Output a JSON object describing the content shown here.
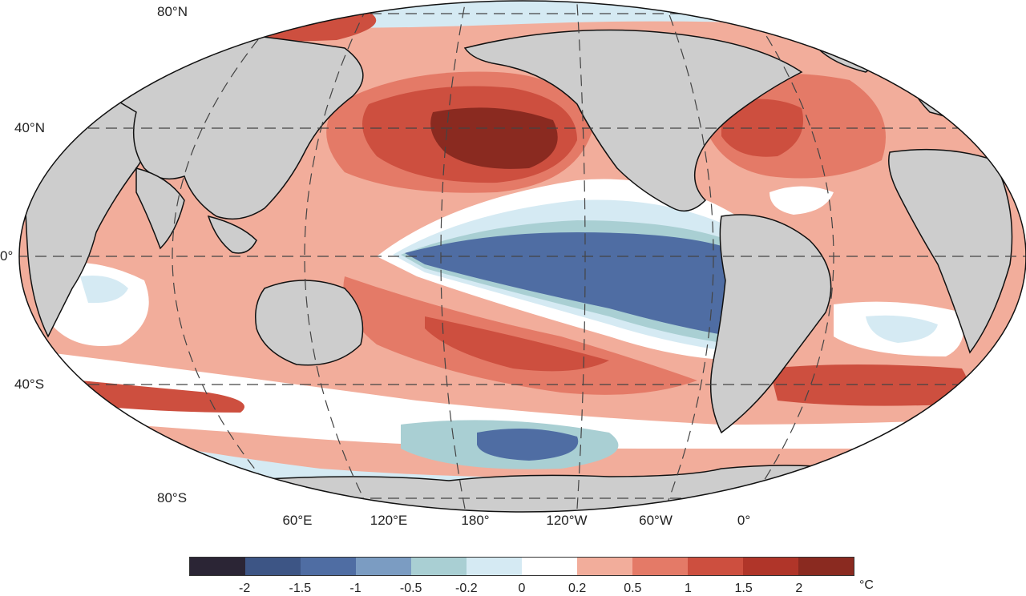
{
  "map": {
    "lat_labels": [
      "80°N",
      "40°N",
      "0°",
      "40°S",
      "80°S"
    ],
    "lon_labels": [
      "60°E",
      "120°E",
      "180°",
      "120°W",
      "60°W",
      "0°"
    ]
  },
  "legend": {
    "colors": [
      "#2b2535",
      "#3d5585",
      "#4f6da3",
      "#7b9cc2",
      "#a9cfd3",
      "#d5eaf3",
      "#ffffff",
      "#f2ad9b",
      "#e47a67",
      "#cd4f3f",
      "#b03529",
      "#8a2a20"
    ],
    "ticks": [
      "-2",
      "-1.5",
      "-1",
      "-0.5",
      "-0.2",
      "0",
      "0.2",
      "0.5",
      "1",
      "1.5",
      "2"
    ],
    "unit": "°C"
  },
  "colors": {
    "land": "#cdcdcd",
    "ocean_frame": "#ffffff",
    "grid": "#444444"
  }
}
